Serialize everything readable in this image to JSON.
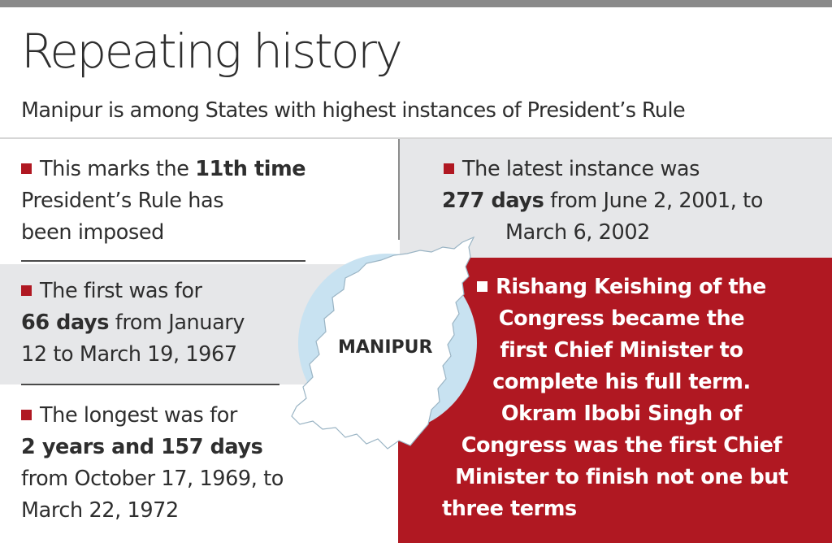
{
  "title": "Repeating history",
  "subtitle": "Manipur is among States with highest instances of President’s Rule",
  "facts": {
    "eleventh": {
      "line1_pre": "This marks the ",
      "line1_bold": "11th time",
      "line2": "President’s Rule has",
      "line3": "been imposed"
    },
    "latest": {
      "line1": "The latest instance was",
      "line2_bold": "277 days",
      "line2_post": " from June 2, 2001, to",
      "line3": "March 6, 2002"
    },
    "first": {
      "line1": "The first was for",
      "line2_bold": "66 days",
      "line2_post": " from January",
      "line3": "12 to March 19, 1967"
    },
    "longest": {
      "line1": "The longest was for",
      "line2_bold": "2 years and 157 days",
      "line3": "from October 17, 1969, to",
      "line4": "March 22, 1972"
    },
    "chief_ministers": {
      "lines": [
        "Rishang Keishing of the",
        "Congress became the",
        "first Chief Minister to",
        "complete his full term.",
        "Okram Ibobi Singh of",
        "Congress was the first Chief",
        "Minister to finish not one but",
        "three terms"
      ]
    }
  },
  "map": {
    "label": "MANIPUR",
    "circle_color": "#c8e2f1",
    "land_color": "#ffffff"
  },
  "colors": {
    "accent_red": "#b01822",
    "panel_gray": "#e6e7e9",
    "top_bar": "#8a8a8a"
  }
}
